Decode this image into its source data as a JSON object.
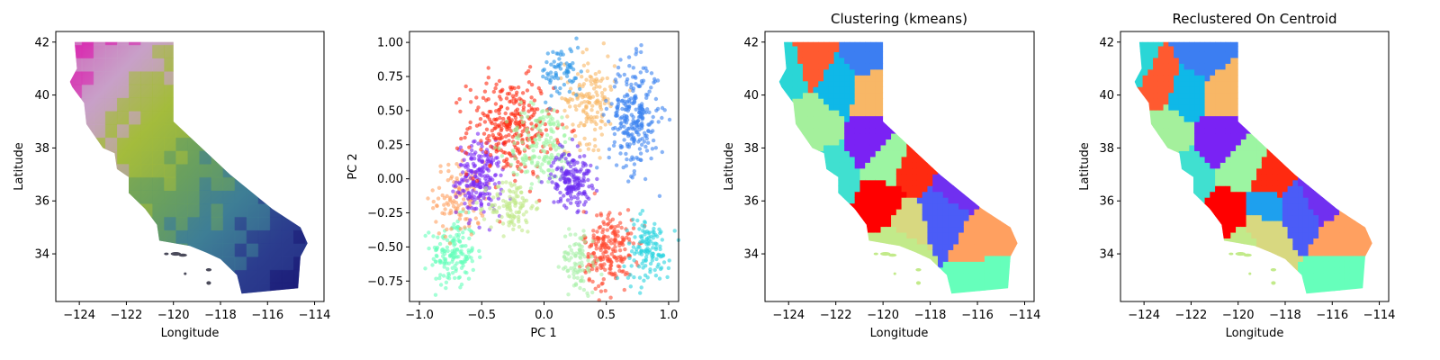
{
  "figure": {
    "background": "#ffffff"
  },
  "chart_data": [
    {
      "type": "map",
      "title": "",
      "xlabel": "Longitude",
      "ylabel": "Latitude",
      "xlim": [
        -125,
        -113.6
      ],
      "ylim": [
        32.2,
        42.4
      ],
      "xticks": [
        -124,
        -122,
        -120,
        -118,
        -116,
        -114
      ],
      "yticks": [
        34,
        36,
        38,
        40,
        42
      ],
      "xtick_labels": [
        "−124",
        "−122",
        "−120",
        "−118",
        "−116",
        "−114"
      ],
      "ytick_labels": [
        "34",
        "36",
        "38",
        "40",
        "42"
      ],
      "coloring": "rgb-gradient",
      "region_colors": [
        "#d82ab0",
        "#c8a0c8",
        "#a4bc3c",
        "#6aa05e",
        "#3e7e96",
        "#2b3d8e",
        "#1c1c78"
      ]
    },
    {
      "type": "scatter",
      "title": "",
      "xlabel": "PC 1",
      "ylabel": "PC 2",
      "xlim": [
        -1.08,
        1.08
      ],
      "ylim": [
        -0.9,
        1.08
      ],
      "xticks": [
        -1.0,
        -0.5,
        0.0,
        0.5,
        1.0
      ],
      "yticks": [
        -0.75,
        -0.5,
        -0.25,
        0.0,
        0.25,
        0.5,
        0.75,
        1.0
      ],
      "xtick_labels": [
        "−1.0",
        "−0.5",
        "0.0",
        "0.5",
        "1.0"
      ],
      "ytick_labels": [
        "−0.75",
        "−0.50",
        "−0.25",
        "0.00",
        "0.25",
        "0.50",
        "0.75",
        "1.00"
      ],
      "clusters": [
        {
          "color": "#66ffbb",
          "center": [
            -0.73,
            -0.55
          ],
          "spread": [
            0.09,
            0.13
          ],
          "n": 160
        },
        {
          "color": "#ffa060",
          "center": [
            -0.68,
            -0.15
          ],
          "spread": [
            0.1,
            0.14
          ],
          "n": 110
        },
        {
          "color": "#7b2cf5",
          "center": [
            -0.52,
            0.0
          ],
          "spread": [
            0.09,
            0.13
          ],
          "n": 210
        },
        {
          "color": "#ff2a10",
          "center": [
            -0.27,
            0.38
          ],
          "spread": [
            0.17,
            0.18
          ],
          "n": 300
        },
        {
          "color": "#c2ea8a",
          "center": [
            -0.26,
            -0.2
          ],
          "spread": [
            0.09,
            0.1
          ],
          "n": 110
        },
        {
          "color": "#9cf5a2",
          "center": [
            -0.02,
            0.25
          ],
          "spread": [
            0.14,
            0.15
          ],
          "n": 160
        },
        {
          "color": "#f8b766",
          "center": [
            0.37,
            0.58
          ],
          "spread": [
            0.1,
            0.16
          ],
          "n": 150
        },
        {
          "color": "#3b82f0",
          "center": [
            0.72,
            0.45
          ],
          "spread": [
            0.1,
            0.2
          ],
          "n": 260
        },
        {
          "color": "#2a95e8",
          "center": [
            0.14,
            0.78
          ],
          "spread": [
            0.08,
            0.1
          ],
          "n": 70
        },
        {
          "color": "#6a2cf0",
          "center": [
            0.22,
            0.0
          ],
          "spread": [
            0.08,
            0.1
          ],
          "n": 170
        },
        {
          "color": "#ff4a30",
          "center": [
            0.52,
            -0.52
          ],
          "spread": [
            0.1,
            0.15
          ],
          "n": 220
        },
        {
          "color": "#2ad4e0",
          "center": [
            0.83,
            -0.52
          ],
          "spread": [
            0.09,
            0.12
          ],
          "n": 130
        },
        {
          "color": "#a8f0a8",
          "center": [
            0.28,
            -0.6
          ],
          "spread": [
            0.07,
            0.12
          ],
          "n": 90
        }
      ]
    },
    {
      "type": "map",
      "title": "Clustering (kmeans)",
      "xlabel": "Longitude",
      "ylabel": "Latitude",
      "xlim": [
        -125,
        -113.6
      ],
      "ylim": [
        32.2,
        42.4
      ],
      "xticks": [
        -124,
        -122,
        -120,
        -118,
        -116,
        -114
      ],
      "yticks": [
        34,
        36,
        38,
        40,
        42
      ],
      "xtick_labels": [
        "−124",
        "−122",
        "−120",
        "−118",
        "−116",
        "−114"
      ],
      "ytick_labels": [
        "34",
        "36",
        "38",
        "40",
        "42"
      ],
      "coloring": "clusters",
      "region_colors": [
        "#2ad6d6",
        "#ff5a30",
        "#3c7ef2",
        "#0fb8e8",
        "#f8b766",
        "#a4f09c",
        "#40e0d0",
        "#7a22f4",
        "#9cf5a2",
        "#ff2a10",
        "#ff0000",
        "#d8d880",
        "#4b5cf7",
        "#7030f0",
        "#ffa060",
        "#c2ea8a",
        "#66ffbb"
      ]
    },
    {
      "type": "map",
      "title": "Reclustered On Centroid",
      "xlabel": "Longitude",
      "ylabel": "Latitude",
      "xlim": [
        -125,
        -113.6
      ],
      "ylim": [
        32.2,
        42.4
      ],
      "xticks": [
        -124,
        -122,
        -120,
        -118,
        -116,
        -114
      ],
      "yticks": [
        34,
        36,
        38,
        40,
        42
      ],
      "xtick_labels": [
        "−124",
        "−122",
        "−120",
        "−118",
        "−116",
        "−114"
      ],
      "ytick_labels": [
        "34",
        "36",
        "38",
        "40",
        "42"
      ],
      "coloring": "clusters",
      "region_colors": [
        "#2ad6d6",
        "#ff5a30",
        "#3c7ef2",
        "#0fb8e8",
        "#f8b766",
        "#a4f09c",
        "#40e0d0",
        "#7a22f4",
        "#9cf5a2",
        "#ff2a10",
        "#1ea0ee",
        "#ff0000",
        "#d8d880",
        "#4b5cf7",
        "#7030f0",
        "#ffa060",
        "#c2ea8a",
        "#66ffbb"
      ]
    }
  ]
}
